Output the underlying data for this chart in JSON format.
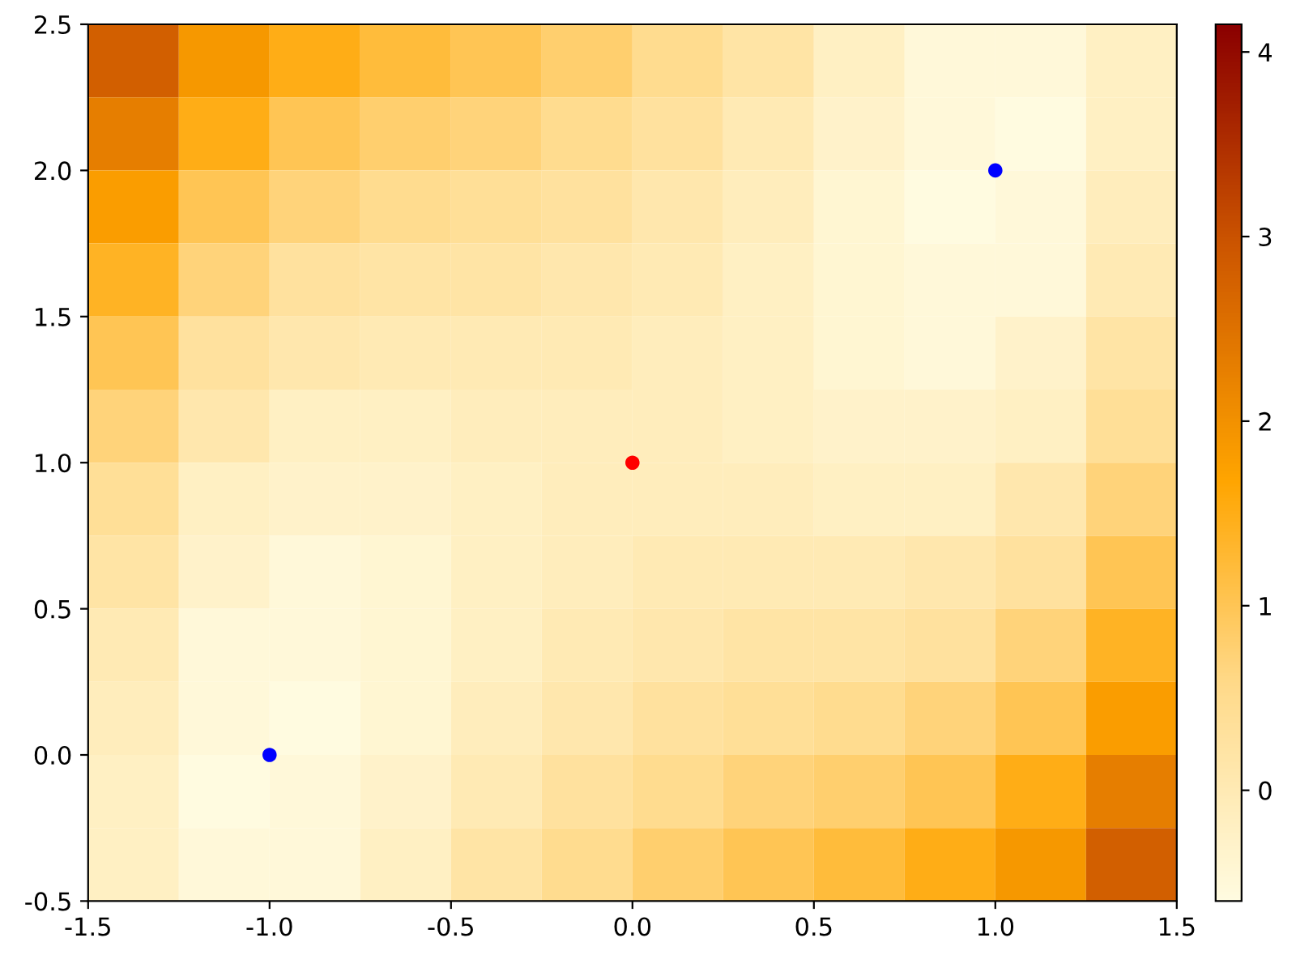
{
  "chart_data": {
    "type": "heatmap",
    "x": [
      -1.375,
      -1.125,
      -0.875,
      -0.625,
      -0.375,
      -0.125,
      0.125,
      0.375,
      0.625,
      0.875,
      1.125,
      1.375
    ],
    "y": [
      2.375,
      2.125,
      1.875,
      1.625,
      1.375,
      1.125,
      0.875,
      0.625,
      0.375,
      0.125,
      -0.125,
      -0.375
    ],
    "cells": [
      [
        2.8,
        1.9,
        1.5,
        1.2,
        1.0,
        0.8,
        0.5,
        0.2,
        -0.2,
        -0.5,
        -0.5,
        -0.2
      ],
      [
        2.3,
        1.5,
        1.0,
        0.8,
        0.7,
        0.5,
        0.3,
        0.0,
        -0.3,
        -0.5,
        -0.6,
        -0.2
      ],
      [
        1.8,
        1.0,
        0.7,
        0.5,
        0.4,
        0.3,
        0.1,
        -0.1,
        -0.4,
        -0.6,
        -0.5,
        -0.1
      ],
      [
        1.4,
        0.7,
        0.3,
        0.2,
        0.2,
        0.1,
        0.0,
        -0.2,
        -0.4,
        -0.5,
        -0.5,
        0.0
      ],
      [
        1.0,
        0.3,
        0.1,
        0.0,
        0.0,
        0.0,
        -0.1,
        -0.2,
        -0.4,
        -0.5,
        -0.3,
        0.2
      ],
      [
        0.7,
        0.1,
        -0.2,
        -0.2,
        -0.1,
        -0.1,
        -0.1,
        -0.2,
        -0.3,
        -0.3,
        -0.2,
        0.4
      ],
      [
        0.4,
        -0.2,
        -0.3,
        -0.3,
        -0.2,
        -0.1,
        -0.1,
        -0.1,
        -0.2,
        -0.2,
        0.1,
        0.7
      ],
      [
        0.2,
        -0.3,
        -0.5,
        -0.4,
        -0.2,
        -0.1,
        0.0,
        0.0,
        0.0,
        0.1,
        0.3,
        1.0
      ],
      [
        0.0,
        -0.5,
        -0.5,
        -0.4,
        -0.2,
        0.0,
        0.1,
        0.2,
        0.2,
        0.3,
        0.7,
        1.4
      ],
      [
        -0.1,
        -0.5,
        -0.6,
        -0.4,
        -0.1,
        0.1,
        0.3,
        0.4,
        0.5,
        0.7,
        1.0,
        1.8
      ],
      [
        -0.2,
        -0.6,
        -0.5,
        -0.3,
        0.0,
        0.3,
        0.5,
        0.7,
        0.8,
        1.0,
        1.5,
        2.3
      ],
      [
        -0.2,
        -0.5,
        -0.5,
        -0.2,
        0.2,
        0.5,
        0.8,
        1.0,
        1.2,
        1.5,
        1.9,
        2.8
      ]
    ],
    "clim": [
      -0.6,
      4.15
    ],
    "cticks": [
      0,
      1,
      2,
      3,
      4
    ],
    "xlim": [
      -1.5,
      1.5
    ],
    "xticks": [
      -1.5,
      {
        "value": -1,
        "label": "-1.0"
      },
      -0.5,
      {
        "value": 0,
        "label": "0.0"
      },
      0.5,
      {
        "value": 1,
        "label": "1.0"
      },
      1.5
    ],
    "ylim": [
      -0.5,
      2.5
    ],
    "yticks": [
      -0.5,
      {
        "value": 0,
        "label": "0.0"
      },
      0.5,
      {
        "value": 1,
        "label": "1.0"
      },
      1.5,
      {
        "value": 2,
        "label": "2.0"
      },
      2.5
    ],
    "series": [
      {
        "type": "scatter",
        "x": [
          -1.0,
          0.0,
          1.0
        ],
        "values": [
          0.0,
          1.0,
          2.0
        ],
        "colors": [
          "#0000ff",
          "#ff0000",
          "#0000ff"
        ]
      }
    ]
  }
}
